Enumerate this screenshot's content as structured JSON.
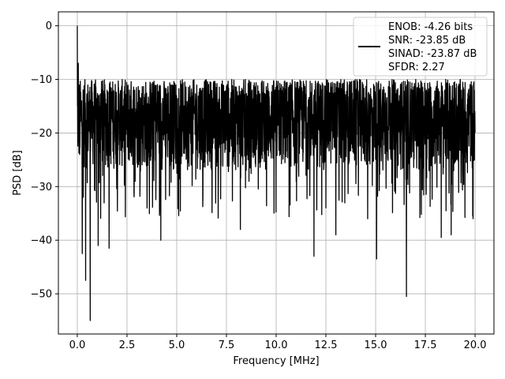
{
  "chart_data": {
    "type": "line",
    "title": "",
    "xlabel": "Frequency [MHz]",
    "ylabel": "PSD [dB]",
    "xlim": [
      -0.95,
      20.95
    ],
    "ylim": [
      -57.5,
      2.6
    ],
    "x_ticks": [
      0.0,
      2.5,
      5.0,
      7.5,
      10.0,
      12.5,
      15.0,
      17.5,
      20.0
    ],
    "x_tick_labels": [
      "0.0",
      "2.5",
      "5.0",
      "7.5",
      "10.0",
      "12.5",
      "15.0",
      "17.5",
      "20.0"
    ],
    "y_ticks": [
      0,
      -10,
      -20,
      -30,
      -40,
      -50
    ],
    "y_tick_labels": [
      "0",
      "−10",
      "−20",
      "−30",
      "−40",
      "−50"
    ],
    "grid": true,
    "legend_position": "top-right",
    "series": [
      {
        "name": "",
        "color": "#000000",
        "x_range": [
          0,
          20
        ],
        "typical_range": [
          -27,
          -10
        ],
        "notable_points": [
          {
            "x": 0.0,
            "y": 0.0
          },
          {
            "x": 0.05,
            "y": -7.0
          },
          {
            "x": 0.12,
            "y": -24.0
          },
          {
            "x": 0.25,
            "y": -42.5
          },
          {
            "x": 0.42,
            "y": -47.5
          },
          {
            "x": 0.65,
            "y": -55.0
          },
          {
            "x": 1.05,
            "y": -41.0
          },
          {
            "x": 1.6,
            "y": -41.5
          },
          {
            "x": 4.2,
            "y": -40.0
          },
          {
            "x": 8.2,
            "y": -38.0
          },
          {
            "x": 11.9,
            "y": -43.0
          },
          {
            "x": 13.0,
            "y": -39.0
          },
          {
            "x": 14.6,
            "y": -36.0
          },
          {
            "x": 15.05,
            "y": -43.5
          },
          {
            "x": 16.55,
            "y": -50.5
          },
          {
            "x": 18.3,
            "y": -39.5
          },
          {
            "x": 18.8,
            "y": -39.0
          }
        ]
      }
    ],
    "legend": {
      "lines": [
        "ENOB: -4.26 bits",
        "SNR: -23.85 dB",
        "SINAD: -23.87 dB",
        "SFDR: 2.27"
      ]
    }
  }
}
